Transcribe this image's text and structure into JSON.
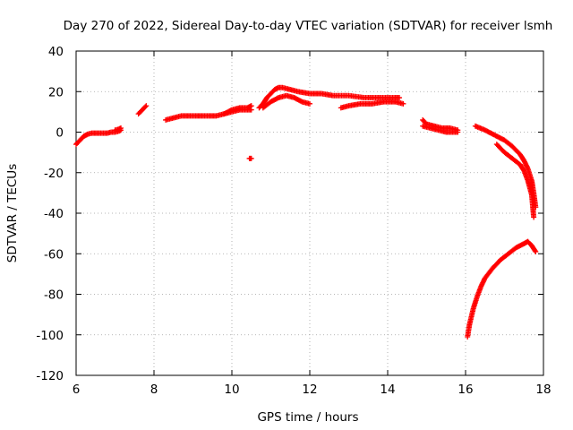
{
  "chart_data": {
    "type": "scatter",
    "title": "Day 270 of 2022, Sidereal Day-to-day VTEC variation (SDTVAR) for receiver lsmh",
    "xlabel": "GPS time / hours",
    "ylabel": "SDTVAR / TECUs",
    "xlim": [
      6,
      18
    ],
    "ylim": [
      -120,
      40
    ],
    "xticks": [
      6,
      8,
      10,
      12,
      14,
      16,
      18
    ],
    "yticks": [
      -120,
      -100,
      -80,
      -60,
      -40,
      -20,
      0,
      20,
      40
    ],
    "xtick_labels": [
      "6",
      "8",
      "10",
      "12",
      "14",
      "16",
      "18"
    ],
    "ytick_labels": [
      "-120",
      "-100",
      "-80",
      "-60",
      "-40",
      "-20",
      "0",
      "20",
      "40"
    ],
    "grid": true,
    "marker": "+",
    "series": [
      {
        "name": "seg1",
        "color": "#ff0000",
        "x": [
          6.0,
          6.1,
          6.2,
          6.3,
          6.4,
          6.5,
          6.6,
          6.7,
          6.8,
          6.9,
          7.0,
          7.1,
          7.15
        ],
        "y": [
          -6,
          -4,
          -2,
          -1,
          -0.5,
          -0.5,
          -0.5,
          -0.5,
          -0.5,
          0,
          0,
          0.5,
          1
        ]
      },
      {
        "name": "seg2",
        "color": "#ff0000",
        "x": [
          7.0,
          7.1,
          7.15
        ],
        "y": [
          1,
          1.5,
          2
        ]
      },
      {
        "name": "seg3",
        "color": "#ff0000",
        "x": [
          7.6,
          7.65,
          7.7,
          7.75,
          7.8
        ],
        "y": [
          9,
          10,
          11,
          12,
          13
        ]
      },
      {
        "name": "seg4",
        "color": "#ff0000",
        "x": [
          8.3,
          8.5,
          8.7,
          9.0,
          9.3,
          9.6,
          9.8,
          10.0,
          10.2,
          10.4,
          10.5
        ],
        "y": [
          6,
          7,
          8,
          8,
          8,
          8,
          9,
          10,
          11,
          11,
          11
        ]
      },
      {
        "name": "seg5",
        "color": "#ff0000",
        "x": [
          9.8,
          10.0,
          10.2,
          10.4,
          10.5
        ],
        "y": [
          9,
          11,
          12,
          12,
          13
        ]
      },
      {
        "name": "seg6",
        "color": "#ff0000",
        "x": [
          10.45,
          10.5
        ],
        "y": [
          -13,
          -13
        ]
      },
      {
        "name": "seg7",
        "color": "#ff0000",
        "x": [
          10.7,
          10.8,
          10.9,
          11.0,
          11.1,
          11.2,
          11.3,
          11.5,
          11.7,
          12.0,
          12.3,
          12.6,
          13.0,
          13.4,
          13.8,
          14.2,
          14.3
        ],
        "y": [
          12,
          14,
          17,
          19,
          21,
          22,
          22,
          21,
          20,
          19,
          19,
          18,
          18,
          17,
          17,
          17,
          17
        ]
      },
      {
        "name": "seg8",
        "color": "#ff0000",
        "x": [
          10.8,
          11.0,
          11.2,
          11.4,
          11.6,
          11.8,
          12.0
        ],
        "y": [
          12,
          15,
          17,
          18,
          17,
          15,
          14
        ]
      },
      {
        "name": "seg9",
        "color": "#ff0000",
        "x": [
          12.8,
          13.0,
          13.3,
          13.6,
          13.9,
          14.2,
          14.4
        ],
        "y": [
          12,
          13,
          14,
          14,
          15,
          15,
          14
        ]
      },
      {
        "name": "seg10",
        "color": "#ff0000",
        "x": [
          14.9,
          15.0,
          15.2,
          15.4,
          15.6,
          15.8
        ],
        "y": [
          6,
          4,
          3,
          2,
          2,
          1
        ]
      },
      {
        "name": "seg11",
        "color": "#ff0000",
        "x": [
          14.9,
          15.1,
          15.3,
          15.5,
          15.7,
          15.8
        ],
        "y": [
          3,
          2,
          1,
          0,
          0,
          0
        ]
      },
      {
        "name": "seg12",
        "color": "#ff0000",
        "x": [
          16.25,
          16.5,
          16.8,
          17.0,
          17.2,
          17.4,
          17.5,
          17.6,
          17.7,
          17.75,
          17.8
        ],
        "y": [
          3,
          1,
          -2,
          -4,
          -7,
          -11,
          -14,
          -18,
          -24,
          -30,
          -37
        ]
      },
      {
        "name": "seg13",
        "color": "#ff0000",
        "x": [
          16.8,
          17.0,
          17.2,
          17.4,
          17.5,
          17.6,
          17.7,
          17.75
        ],
        "y": [
          -6,
          -10,
          -13,
          -16,
          -19,
          -24,
          -31,
          -42
        ]
      },
      {
        "name": "seg14",
        "color": "#ff0000",
        "x": [
          16.05,
          16.1,
          16.2,
          16.3,
          16.4,
          16.5,
          16.7,
          16.9,
          17.1,
          17.3,
          17.5,
          17.6,
          17.7,
          17.8
        ],
        "y": [
          -101,
          -95,
          -87,
          -81,
          -76,
          -72,
          -67,
          -63,
          -60,
          -57,
          -55,
          -54,
          -56,
          -59
        ]
      }
    ]
  }
}
